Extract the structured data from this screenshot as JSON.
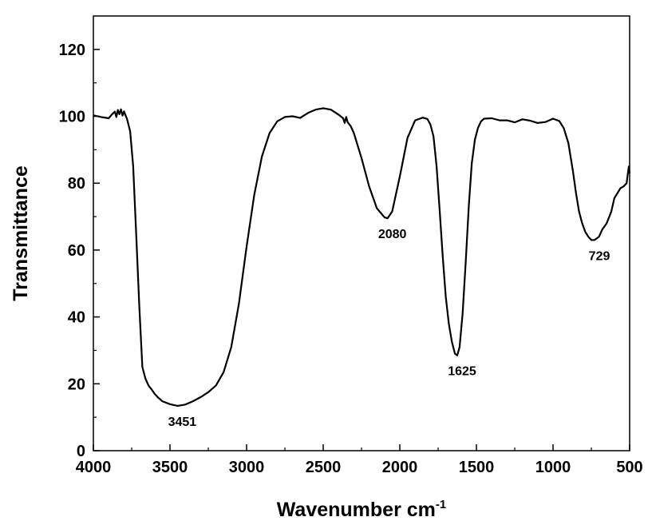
{
  "chart_data": {
    "type": "line",
    "title": "",
    "xlabel": "Wavenumber cm",
    "xlabel_superscript": "-1",
    "ylabel": "Transmittance",
    "xlim": [
      4000,
      500
    ],
    "ylim": [
      0,
      130
    ],
    "x_reversed": true,
    "grid": false,
    "legend": "none",
    "line_color": "#000000",
    "xticks": [
      4000,
      3500,
      3000,
      2500,
      2000,
      1500,
      1000,
      500
    ],
    "xtick_labels": [
      "4000",
      "3500",
      "3000",
      "2500",
      "2000",
      "1500",
      "1000",
      "500"
    ],
    "yticks": [
      0,
      20,
      40,
      60,
      80,
      100,
      120
    ],
    "ytick_labels": [
      "0",
      "20",
      "40",
      "60",
      "80",
      "100",
      "120"
    ],
    "series": [
      {
        "x": [
          4000,
          3950,
          3900,
          3880,
          3860,
          3850,
          3840,
          3830,
          3820,
          3810,
          3800,
          3790,
          3780,
          3760,
          3740,
          3720,
          3700,
          3680,
          3660,
          3640,
          3620,
          3600,
          3580,
          3550,
          3500,
          3451,
          3400,
          3350,
          3300,
          3250,
          3200,
          3150,
          3100,
          3050,
          3000,
          2950,
          2900,
          2850,
          2800,
          2750,
          2700,
          2650,
          2600,
          2550,
          2500,
          2450,
          2400,
          2370,
          2360,
          2350,
          2340,
          2320,
          2300,
          2250,
          2200,
          2150,
          2100,
          2080,
          2050,
          2000,
          1950,
          1900,
          1850,
          1820,
          1800,
          1780,
          1760,
          1740,
          1720,
          1700,
          1680,
          1660,
          1640,
          1625,
          1610,
          1590,
          1570,
          1550,
          1530,
          1510,
          1490,
          1470,
          1450,
          1400,
          1350,
          1300,
          1250,
          1200,
          1150,
          1100,
          1050,
          1000,
          960,
          930,
          900,
          870,
          850,
          830,
          810,
          790,
          770,
          750,
          729,
          700,
          680,
          650,
          620,
          600,
          580,
          560,
          540,
          520,
          510,
          505,
          500
        ],
        "y": [
          100.3,
          99.8,
          99.4,
          100.5,
          101.4,
          99.8,
          101.9,
          100.6,
          102.1,
          100.2,
          101.5,
          100.3,
          99.2,
          95.5,
          85.0,
          64.0,
          43.0,
          25.0,
          21.5,
          19.5,
          18.3,
          17.0,
          16.0,
          14.8,
          13.9,
          13.4,
          13.8,
          14.8,
          16.0,
          17.5,
          19.5,
          23.5,
          31.0,
          44.0,
          61.0,
          76.5,
          88.0,
          95.0,
          98.5,
          99.8,
          100.0,
          99.5,
          101.0,
          102.0,
          102.4,
          102.0,
          100.5,
          99.4,
          98.0,
          99.8,
          98.2,
          97.0,
          95.0,
          87.5,
          79.0,
          72.5,
          69.8,
          69.5,
          71.5,
          82.0,
          93.5,
          98.8,
          99.6,
          99.2,
          97.5,
          94.0,
          85.0,
          72.0,
          58.0,
          46.0,
          38.0,
          32.5,
          29.0,
          28.5,
          31.0,
          41.0,
          56.5,
          73.0,
          86.0,
          93.0,
          96.5,
          98.5,
          99.3,
          99.4,
          98.8,
          98.8,
          98.2,
          99.1,
          98.7,
          98.0,
          98.3,
          99.3,
          98.6,
          96.5,
          92.0,
          83.5,
          77.0,
          71.5,
          68.0,
          65.5,
          64.0,
          63.0,
          63.0,
          64.0,
          66.0,
          68.0,
          71.5,
          75.5,
          77.0,
          78.5,
          79.0,
          80.0,
          83.5,
          85.0,
          83.0
        ]
      }
    ],
    "annotations": [
      {
        "text": "3451",
        "x": 3451,
        "y": 13.4
      },
      {
        "text": "2080",
        "x": 2080,
        "y": 69.5
      },
      {
        "text": "1625",
        "x": 1625,
        "y": 28.5
      },
      {
        "text": "729",
        "x": 729,
        "y": 63.0
      }
    ]
  }
}
